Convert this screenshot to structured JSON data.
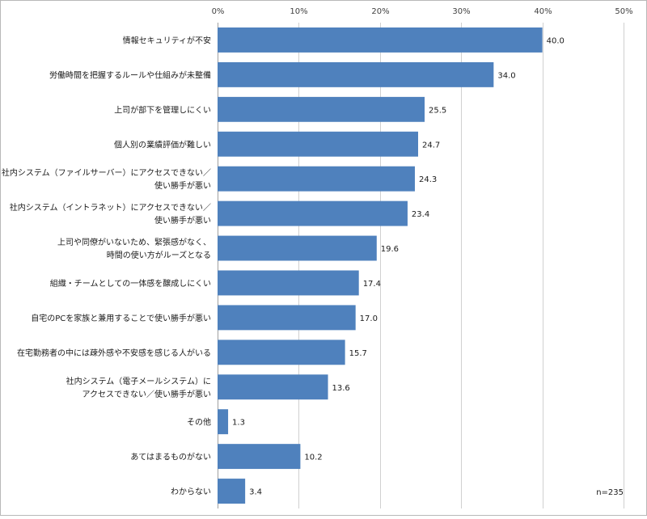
{
  "chart_data": {
    "type": "bar",
    "orientation": "horizontal",
    "categories": [
      [
        "情報セキュリティが不安"
      ],
      [
        "労働時間を把握するルールや仕組みが未整備"
      ],
      [
        "上司が部下を管理しにくい"
      ],
      [
        "個人別の業績評価が難しい"
      ],
      [
        "社内システム（ファイルサーバー）にアクセスできない／",
        "使い勝手が悪い"
      ],
      [
        "社内システム（イントラネット）にアクセスできない／",
        "使い勝手が悪い"
      ],
      [
        "上司や同僚がいないため、緊張感がなく、",
        "時間の使い方がルーズとなる"
      ],
      [
        "組織・チームとしての一体感を醸成しにくい"
      ],
      [
        "自宅のPCを家族と兼用することで使い勝手が悪い"
      ],
      [
        "在宅勤務者の中には疎外感や不安感を感じる人がいる"
      ],
      [
        "社内システム（電子メールシステム）に",
        "アクセスできない／使い勝手が悪い"
      ],
      [
        "その他"
      ],
      [
        "あてはまるものがない"
      ],
      [
        "わからない"
      ]
    ],
    "values": [
      40.0,
      34.0,
      25.5,
      24.7,
      24.3,
      23.4,
      19.6,
      17.4,
      17.0,
      15.7,
      13.6,
      1.3,
      10.2,
      3.4
    ],
    "value_labels": [
      "40.0",
      "34.0",
      "25.5",
      "24.7",
      "24.3",
      "23.4",
      "19.6",
      "17.4",
      "17.0",
      "15.7",
      "13.6",
      "1.3",
      "10.2",
      "3.4"
    ],
    "xlim": [
      0,
      50
    ],
    "ticks": [
      "0%",
      "10%",
      "20%",
      "30%",
      "40%",
      "50%"
    ],
    "tick_values": [
      0,
      10,
      20,
      30,
      40,
      50
    ],
    "axis_position": "top",
    "grid": true,
    "bar_color": "#4f81bd",
    "note": "n=235"
  }
}
